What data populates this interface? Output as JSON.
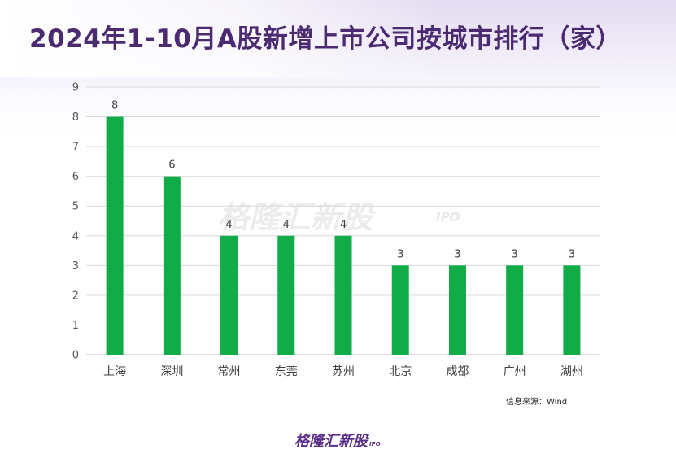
{
  "header": {
    "title": "2024年1-10月A股新增上市公司按城市排行（家）"
  },
  "watermark": {
    "text": "格隆汇新股",
    "sub": "IPO"
  },
  "footer": {
    "source": "信息来源：Wind",
    "logo_text": "格隆汇新股",
    "logo_sub": "IPO"
  },
  "colors": {
    "bar": "#11ab48",
    "grid": "#d9d9d9",
    "title": "#4b2a72",
    "brand": "#5b2f86"
  },
  "chart_data": {
    "type": "bar",
    "title": "2024年1-10月A股新增上市公司按城市排行（家）",
    "xlabel": "",
    "ylabel": "",
    "categories": [
      "上海",
      "深圳",
      "常州",
      "东莞",
      "苏州",
      "北京",
      "成都",
      "广州",
      "湖州"
    ],
    "values": [
      8,
      6,
      4,
      4,
      4,
      3,
      3,
      3,
      3
    ],
    "ylim": [
      0,
      9
    ],
    "yticks": [
      0,
      1,
      2,
      3,
      4,
      5,
      6,
      7,
      8,
      9
    ],
    "grid": true,
    "data_labels": true,
    "legend": "none"
  }
}
